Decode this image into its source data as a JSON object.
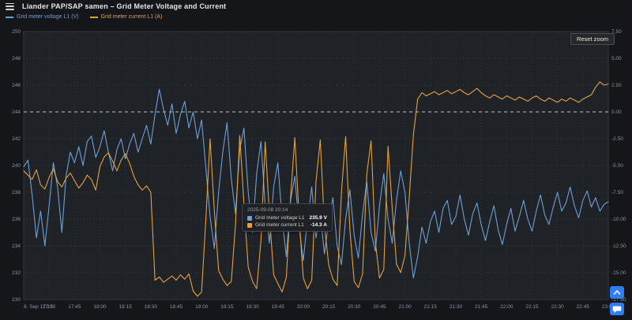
{
  "header": {
    "title": "Liander PAP/SAP samen – Grid Meter Voltage and Current"
  },
  "legend": [
    {
      "label": "Grid meter voltage L1 (V)",
      "color": "#6e9fd6"
    },
    {
      "label": "Grid meter current L1 (A)",
      "color": "#e5a23d"
    }
  ],
  "controls": {
    "reset_zoom_label": "Reset zoom"
  },
  "tooltip": {
    "timestamp": "2025-09-08 20:14",
    "rows": [
      {
        "label": "Grid meter voltage L1",
        "value": "235.9 V",
        "color": "#6e9fd6"
      },
      {
        "label": "Grid meter current L1",
        "value": "-14.3 A",
        "color": "#e5a23d"
      }
    ]
  },
  "fab": {
    "color": "#2e7cf6"
  },
  "chart_data": {
    "type": "line",
    "title": "Grid Meter Voltage and Current",
    "grid": true,
    "legend_position": "top-left",
    "x_axis": {
      "unit": "time",
      "range_minutes": [
        0,
        345
      ],
      "ticks": [
        {
          "t": 0,
          "label": "8. Sep 17:15"
        },
        {
          "t": 15,
          "label": "17:30"
        },
        {
          "t": 30,
          "label": "17:45"
        },
        {
          "t": 45,
          "label": "18:00"
        },
        {
          "t": 60,
          "label": "18:15"
        },
        {
          "t": 75,
          "label": "18:30"
        },
        {
          "t": 90,
          "label": "18:45"
        },
        {
          "t": 105,
          "label": "19:00"
        },
        {
          "t": 120,
          "label": "19:15"
        },
        {
          "t": 135,
          "label": "19:30"
        },
        {
          "t": 150,
          "label": "19:45"
        },
        {
          "t": 165,
          "label": "20:00"
        },
        {
          "t": 180,
          "label": "20:15"
        },
        {
          "t": 195,
          "label": "20:30"
        },
        {
          "t": 210,
          "label": "20:45"
        },
        {
          "t": 225,
          "label": "21:00"
        },
        {
          "t": 240,
          "label": "21:15"
        },
        {
          "t": 255,
          "label": "21:30"
        },
        {
          "t": 270,
          "label": "21:45"
        },
        {
          "t": 285,
          "label": "22:00"
        },
        {
          "t": 300,
          "label": "22:15"
        },
        {
          "t": 315,
          "label": "22:30"
        },
        {
          "t": 330,
          "label": "22:45"
        },
        {
          "t": 345,
          "label": "23:00"
        }
      ]
    },
    "y_left": {
      "unit": "V",
      "min": 230,
      "max": 250,
      "step": 2
    },
    "y_right": {
      "unit": "A",
      "min": -17.5,
      "max": 7.5,
      "step": 2.5,
      "zero_line": true
    },
    "series": [
      {
        "name": "Grid meter voltage L1 (V)",
        "axis": "left",
        "color": "#6e9fd6",
        "points": [
          [
            0,
            239.9
          ],
          [
            2.5,
            240.4
          ],
          [
            5,
            237.8
          ],
          [
            7.5,
            234.6
          ],
          [
            10,
            236.6
          ],
          [
            12.5,
            234.0
          ],
          [
            15,
            237.0
          ],
          [
            17.5,
            240.2
          ],
          [
            20,
            238.4
          ],
          [
            22.5,
            235.0
          ],
          [
            25,
            239.2
          ],
          [
            27.5,
            241.0
          ],
          [
            30,
            240.2
          ],
          [
            32.5,
            241.4
          ],
          [
            35,
            240.0
          ],
          [
            37.5,
            241.8
          ],
          [
            40,
            242.2
          ],
          [
            42.5,
            240.6
          ],
          [
            45,
            241.4
          ],
          [
            47.5,
            242.6
          ],
          [
            50,
            241.0
          ],
          [
            52.5,
            239.6
          ],
          [
            55,
            241.2
          ],
          [
            57.5,
            242.0
          ],
          [
            60,
            240.5
          ],
          [
            62.5,
            241.6
          ],
          [
            65,
            242.4
          ],
          [
            67.5,
            241.0
          ],
          [
            70,
            242.0
          ],
          [
            72.5,
            243.0
          ],
          [
            75,
            241.6
          ],
          [
            77.5,
            243.8
          ],
          [
            80,
            245.7
          ],
          [
            82.5,
            244.2
          ],
          [
            85,
            243.0
          ],
          [
            87.5,
            244.6
          ],
          [
            90,
            242.4
          ],
          [
            92.5,
            243.8
          ],
          [
            95,
            244.8
          ],
          [
            97.5,
            242.8
          ],
          [
            100,
            244.0
          ],
          [
            102.5,
            242.0
          ],
          [
            105,
            243.4
          ],
          [
            107.5,
            239.8
          ],
          [
            110,
            236.2
          ],
          [
            112.5,
            233.8
          ],
          [
            115,
            238.0
          ],
          [
            117.5,
            241.0
          ],
          [
            120,
            243.2
          ],
          [
            122.5,
            239.0
          ],
          [
            125,
            236.4
          ],
          [
            127.5,
            241.2
          ],
          [
            130,
            242.8
          ],
          [
            132.5,
            238.0
          ],
          [
            135,
            235.0
          ],
          [
            137.5,
            239.4
          ],
          [
            140,
            241.8
          ],
          [
            142.5,
            237.0
          ],
          [
            145,
            234.2
          ],
          [
            147.5,
            238.4
          ],
          [
            150,
            240.2
          ],
          [
            152.5,
            236.0
          ],
          [
            155,
            233.2
          ],
          [
            157.5,
            237.4
          ],
          [
            160,
            239.2
          ],
          [
            162.5,
            235.4
          ],
          [
            165,
            232.9
          ],
          [
            167.5,
            236.0
          ],
          [
            170,
            238.4
          ],
          [
            172.5,
            234.6
          ],
          [
            175,
            236.4
          ],
          [
            177.5,
            233.4
          ],
          [
            180,
            235.9
          ],
          [
            182.5,
            237.6
          ],
          [
            185,
            234.0
          ],
          [
            187.5,
            232.6
          ],
          [
            190,
            236.0
          ],
          [
            192.5,
            238.2
          ],
          [
            195,
            234.8
          ],
          [
            197.5,
            233.1
          ],
          [
            200,
            236.4
          ],
          [
            202.5,
            238.8
          ],
          [
            205,
            235.0
          ],
          [
            207.5,
            233.6
          ],
          [
            210,
            237.0
          ],
          [
            212.5,
            239.4
          ],
          [
            215,
            236.0
          ],
          [
            217.5,
            234.2
          ],
          [
            220,
            237.4
          ],
          [
            222.5,
            239.6
          ],
          [
            225,
            238.0
          ],
          [
            227.5,
            234.2
          ],
          [
            230,
            231.6
          ],
          [
            232.5,
            233.2
          ],
          [
            235,
            235.4
          ],
          [
            237.5,
            234.2
          ],
          [
            240,
            235.8
          ],
          [
            242.5,
            236.6
          ],
          [
            245,
            235.0
          ],
          [
            247.5,
            236.8
          ],
          [
            250,
            237.4
          ],
          [
            252.5,
            235.6
          ],
          [
            255,
            236.2
          ],
          [
            257.5,
            237.8
          ],
          [
            260,
            236.0
          ],
          [
            262.5,
            234.8
          ],
          [
            265,
            236.4
          ],
          [
            267.5,
            237.2
          ],
          [
            270,
            235.6
          ],
          [
            272.5,
            234.4
          ],
          [
            275,
            235.8
          ],
          [
            277.5,
            237.0
          ],
          [
            280,
            235.2
          ],
          [
            282.5,
            234.1
          ],
          [
            285,
            235.6
          ],
          [
            287.5,
            236.8
          ],
          [
            290,
            235.1
          ],
          [
            292.5,
            236.2
          ],
          [
            295,
            237.4
          ],
          [
            297.5,
            236.0
          ],
          [
            300,
            235.1
          ],
          [
            302.5,
            236.6
          ],
          [
            305,
            237.8
          ],
          [
            307.5,
            236.3
          ],
          [
            310,
            235.6
          ],
          [
            312.5,
            236.9
          ],
          [
            315,
            238.0
          ],
          [
            317.5,
            236.6
          ],
          [
            320,
            237.2
          ],
          [
            322.5,
            238.4
          ],
          [
            325,
            237.0
          ],
          [
            327.5,
            236.1
          ],
          [
            330,
            237.4
          ],
          [
            332.5,
            238.1
          ],
          [
            335,
            236.9
          ],
          [
            337.5,
            237.6
          ],
          [
            340,
            236.6
          ],
          [
            342.5,
            237.1
          ],
          [
            345,
            237.3
          ]
        ]
      },
      {
        "name": "Grid meter current L1 (A)",
        "axis": "right",
        "color": "#e5a23d",
        "points": [
          [
            0,
            -5.5
          ],
          [
            2.5,
            -5.9
          ],
          [
            5,
            -6.3
          ],
          [
            7.5,
            -5.4
          ],
          [
            10,
            -6.8
          ],
          [
            12.5,
            -7.2
          ],
          [
            15,
            -6.1
          ],
          [
            17.5,
            -5.3
          ],
          [
            20,
            -6.5
          ],
          [
            22.5,
            -7.0
          ],
          [
            25,
            -6.2
          ],
          [
            27.5,
            -5.7
          ],
          [
            30,
            -6.4
          ],
          [
            32.5,
            -7.1
          ],
          [
            35,
            -6.6
          ],
          [
            37.5,
            -5.9
          ],
          [
            40,
            -6.3
          ],
          [
            42.5,
            -7.3
          ],
          [
            45,
            -5.1
          ],
          [
            47.5,
            -4.2
          ],
          [
            50,
            -3.8
          ],
          [
            52.5,
            -4.6
          ],
          [
            55,
            -5.5
          ],
          [
            57.5,
            -4.5
          ],
          [
            60,
            -3.9
          ],
          [
            62.5,
            -4.8
          ],
          [
            65,
            -6.0
          ],
          [
            67.5,
            -6.8
          ],
          [
            70,
            -7.3
          ],
          [
            72.5,
            -6.9
          ],
          [
            75,
            -7.5
          ],
          [
            77.5,
            -15.7
          ],
          [
            80,
            -15.4
          ],
          [
            82.5,
            -15.9
          ],
          [
            85,
            -15.6
          ],
          [
            87.5,
            -15.3
          ],
          [
            90,
            -15.7
          ],
          [
            92.5,
            -15.2
          ],
          [
            95,
            -15.6
          ],
          [
            97.5,
            -15.1
          ],
          [
            100,
            -16.7
          ],
          [
            102.5,
            -17.2
          ],
          [
            105,
            -16.8
          ],
          [
            107.5,
            -10.0
          ],
          [
            110,
            -2.5
          ],
          [
            112.5,
            -9.2
          ],
          [
            115,
            -14.8
          ],
          [
            117.5,
            -15.6
          ],
          [
            120,
            -16.2
          ],
          [
            122.5,
            -15.8
          ],
          [
            125,
            -10.5
          ],
          [
            127.5,
            -2.2
          ],
          [
            130,
            -8.6
          ],
          [
            132.5,
            -14.5
          ],
          [
            135,
            -15.8
          ],
          [
            137.5,
            -16.5
          ],
          [
            140,
            -12.0
          ],
          [
            142.5,
            -2.8
          ],
          [
            145,
            -9.5
          ],
          [
            147.5,
            -15.2
          ],
          [
            150,
            -16.0
          ],
          [
            152.5,
            -16.8
          ],
          [
            155,
            -15.4
          ],
          [
            157.5,
            -8.0
          ],
          [
            160,
            -2.4
          ],
          [
            162.5,
            -9.8
          ],
          [
            165,
            -15.5
          ],
          [
            167.5,
            -16.5
          ],
          [
            170,
            -15.7
          ],
          [
            172.5,
            -6.5
          ],
          [
            175,
            -2.6
          ],
          [
            177.5,
            -10.6
          ],
          [
            180,
            -14.3
          ],
          [
            182.5,
            -15.6
          ],
          [
            185,
            -16.2
          ],
          [
            187.5,
            -7.5
          ],
          [
            190,
            -2.3
          ],
          [
            192.5,
            -11.0
          ],
          [
            195,
            -15.8
          ],
          [
            197.5,
            -16.4
          ],
          [
            200,
            -15.1
          ],
          [
            202.5,
            -5.8
          ],
          [
            205,
            -2.7
          ],
          [
            207.5,
            -12.1
          ],
          [
            210,
            -15.5
          ],
          [
            212.5,
            -14.7
          ],
          [
            215,
            -3.2
          ],
          [
            217.5,
            -9.0
          ],
          [
            220,
            -14.2
          ],
          [
            222.5,
            -15.0
          ],
          [
            225,
            -13.4
          ],
          [
            227.5,
            -8.0
          ],
          [
            230,
            -2.1
          ],
          [
            232.5,
            1.2
          ],
          [
            235,
            1.8
          ],
          [
            237.5,
            1.5
          ],
          [
            240,
            1.7
          ],
          [
            242.5,
            1.9
          ],
          [
            245,
            1.6
          ],
          [
            247.5,
            1.8
          ],
          [
            250,
            2.0
          ],
          [
            252.5,
            1.7
          ],
          [
            255,
            1.9
          ],
          [
            257.5,
            2.1
          ],
          [
            260,
            1.8
          ],
          [
            262.5,
            1.6
          ],
          [
            265,
            1.9
          ],
          [
            267.5,
            2.2
          ],
          [
            270,
            1.8
          ],
          [
            272.5,
            1.5
          ],
          [
            275,
            1.3
          ],
          [
            277.5,
            1.6
          ],
          [
            280,
            1.4
          ],
          [
            282.5,
            1.2
          ],
          [
            285,
            1.5
          ],
          [
            287.5,
            1.3
          ],
          [
            290,
            1.1
          ],
          [
            292.5,
            1.4
          ],
          [
            295,
            1.2
          ],
          [
            297.5,
            1.0
          ],
          [
            300,
            1.3
          ],
          [
            302.5,
            1.5
          ],
          [
            305,
            1.2
          ],
          [
            307.5,
            1.0
          ],
          [
            310,
            1.3
          ],
          [
            312.5,
            1.1
          ],
          [
            315,
            0.9
          ],
          [
            317.5,
            1.2
          ],
          [
            320,
            1.0
          ],
          [
            322.5,
            1.3
          ],
          [
            325,
            1.1
          ],
          [
            327.5,
            0.9
          ],
          [
            330,
            1.2
          ],
          [
            332.5,
            1.4
          ],
          [
            335,
            1.6
          ],
          [
            337.5,
            2.3
          ],
          [
            340,
            2.8
          ],
          [
            342.5,
            2.5
          ],
          [
            345,
            2.6
          ]
        ]
      }
    ]
  }
}
